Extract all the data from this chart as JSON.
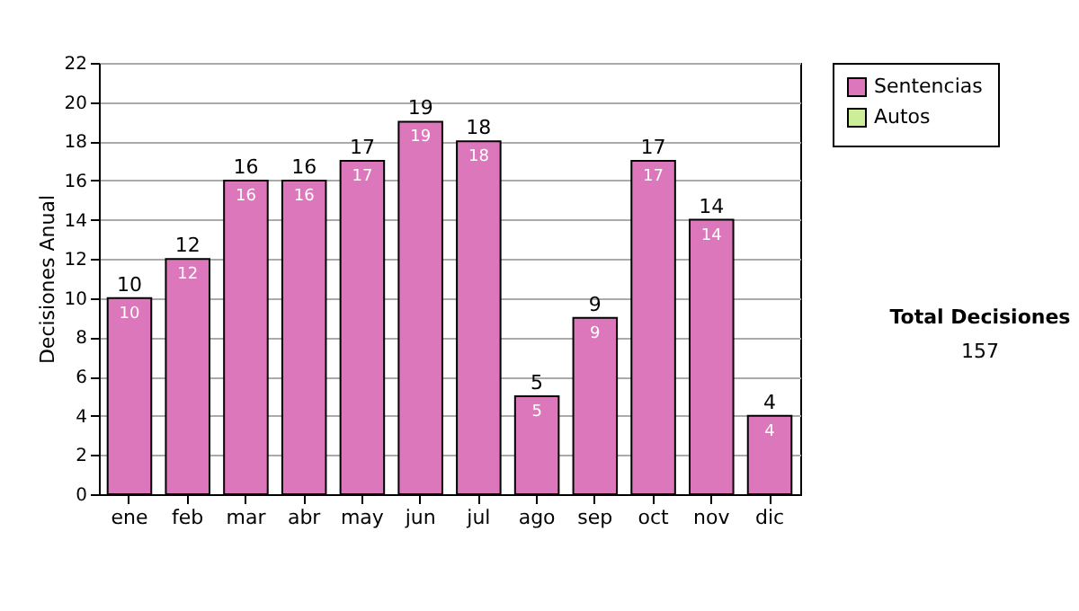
{
  "chart_data": {
    "type": "bar",
    "ylabel": "Decisiones Anual",
    "categories": [
      "ene",
      "feb",
      "mar",
      "abr",
      "may",
      "jun",
      "jul",
      "ago",
      "sep",
      "oct",
      "nov",
      "dic"
    ],
    "series": [
      {
        "name": "Sentencias",
        "color": "#dd77bb",
        "values": [
          10,
          12,
          16,
          16,
          17,
          19,
          18,
          5,
          9,
          17,
          14,
          4
        ]
      },
      {
        "name": "Autos",
        "color": "#ccee99",
        "values": [
          null,
          null,
          null,
          null,
          null,
          null,
          null,
          null,
          null,
          null,
          null,
          null
        ]
      }
    ],
    "data_labels": true,
    "totals": [
      "10",
      "12",
      "16",
      "16",
      "17",
      "19",
      "18",
      "5",
      "9",
      "17",
      "14",
      "4"
    ],
    "ylim": [
      0,
      22
    ],
    "yticks": [
      0,
      2,
      4,
      6,
      8,
      10,
      12,
      14,
      16,
      18,
      20,
      22
    ],
    "grid": "y",
    "legend": "right",
    "annotations": [
      "Total Decisiones",
      "157"
    ]
  }
}
